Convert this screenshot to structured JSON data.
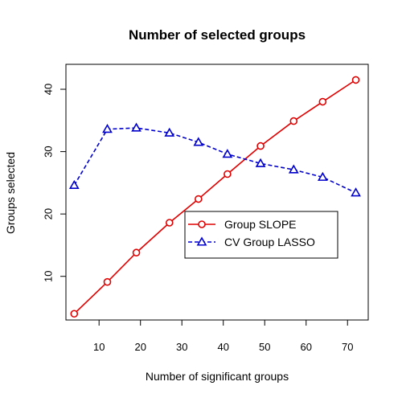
{
  "chart_data": {
    "type": "line",
    "title": "Number of selected groups",
    "xlabel": "Number of significant groups",
    "ylabel": "Groups selected",
    "xlim": [
      2,
      75
    ],
    "ylim": [
      3,
      44
    ],
    "x_ticks": [
      10,
      20,
      30,
      40,
      50,
      60,
      70
    ],
    "y_ticks": [
      10,
      20,
      30,
      40
    ],
    "grid": false,
    "legend_position": "center-right",
    "series": [
      {
        "name": "Group SLOPE",
        "color": "#e00000",
        "marker": "circle",
        "line_style": "solid",
        "x": [
          4,
          12,
          19,
          27,
          34,
          41,
          49,
          57,
          64,
          72
        ],
        "y": [
          4.0,
          9.1,
          13.8,
          18.6,
          22.4,
          26.4,
          30.9,
          34.9,
          38.0,
          41.5
        ]
      },
      {
        "name": "CV Group LASSO",
        "color": "#0000cc",
        "marker": "triangle",
        "line_style": "dashed",
        "x": [
          4,
          12,
          19,
          27,
          34,
          41,
          49,
          57,
          64,
          72
        ],
        "y": [
          24.6,
          33.6,
          33.8,
          33.0,
          31.5,
          29.6,
          28.1,
          27.1,
          25.9,
          23.4
        ]
      }
    ]
  }
}
